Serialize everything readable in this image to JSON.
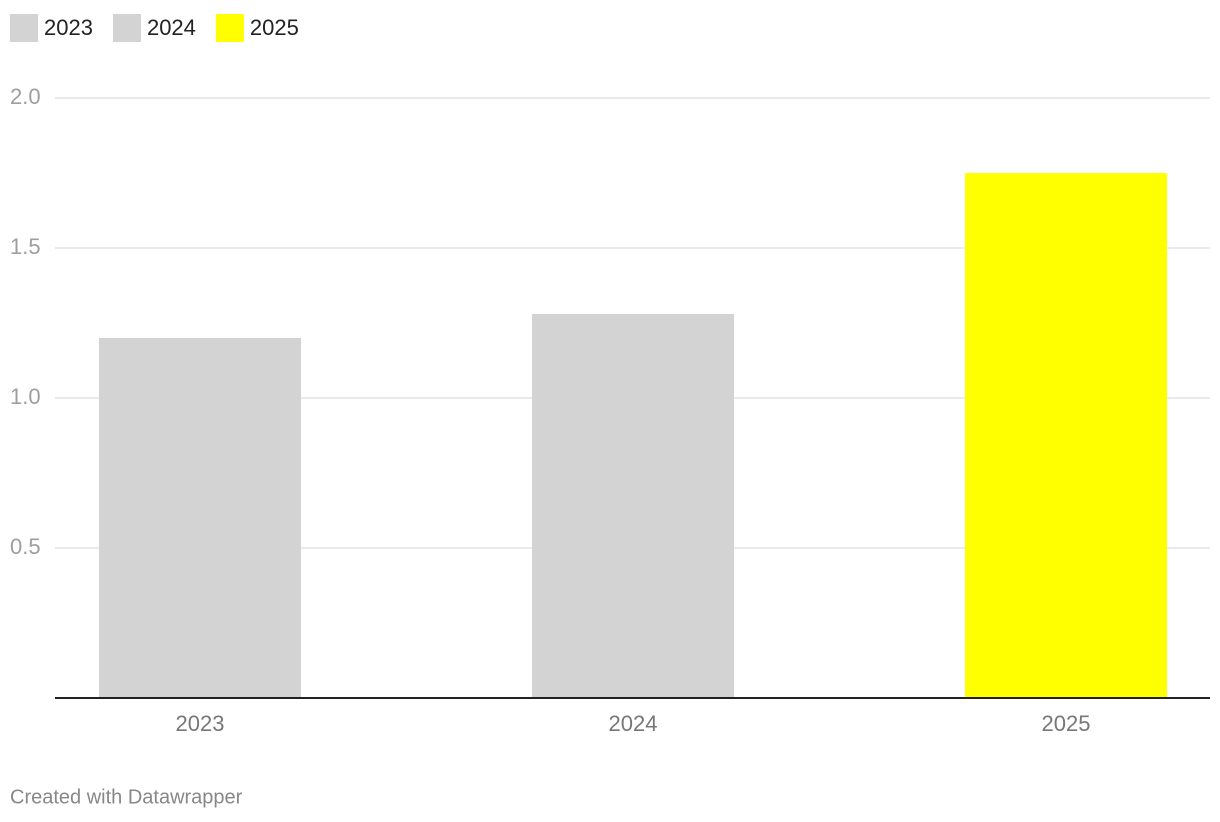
{
  "chart_data": {
    "type": "bar",
    "categories": [
      "2023",
      "2024",
      "2025"
    ],
    "series": [
      {
        "name": "2023",
        "color": "#d3d3d3",
        "values": [
          1.2,
          null,
          null
        ]
      },
      {
        "name": "2024",
        "color": "#d3d3d3",
        "values": [
          null,
          1.28,
          null
        ]
      },
      {
        "name": "2025",
        "color": "#ffff00",
        "values": [
          null,
          null,
          1.75
        ]
      }
    ],
    "ylim": [
      0,
      2
    ],
    "yticks": [
      0.5,
      {
        "value": 1,
        "label": "1.0"
      },
      1.5,
      {
        "value": 2,
        "label": "2.0"
      }
    ],
    "grid": true,
    "legend": "top-left",
    "footer": "Created with Datawrapper"
  }
}
